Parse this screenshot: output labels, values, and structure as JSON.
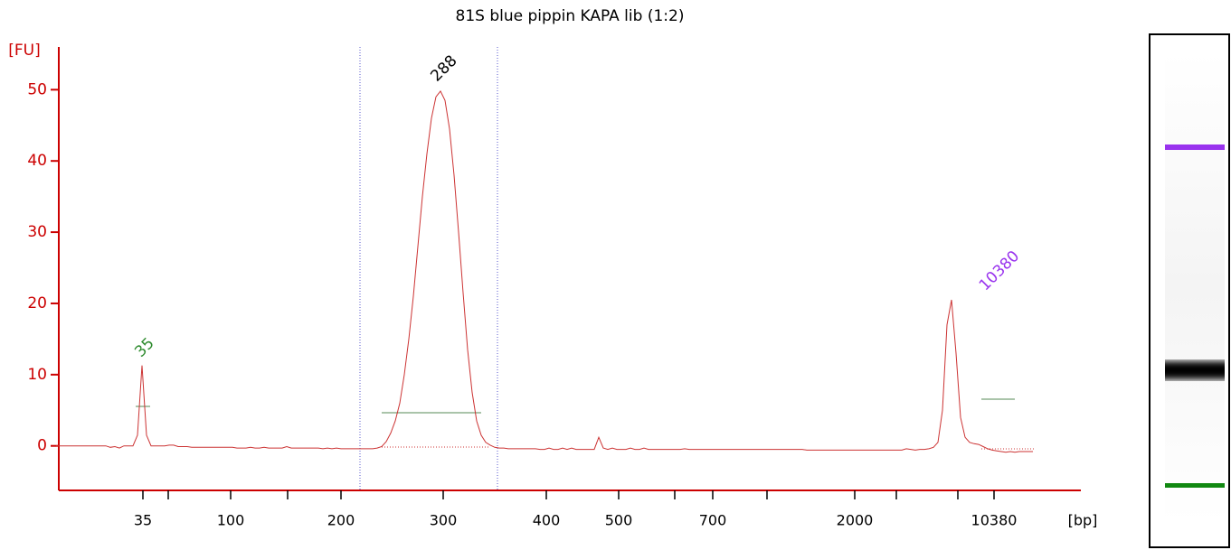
{
  "chart_data": {
    "type": "line",
    "title": "81S blue pippin KAPA lib (1:2)",
    "y_label": "[FU]",
    "x_label": "[bp]",
    "color": "#cc3333",
    "axis_color": "#cc0000",
    "ylim": [
      -6.25,
      56
    ],
    "yticks": [
      0,
      10,
      20,
      30,
      40,
      50
    ],
    "x_tick_labels": [
      "35",
      null,
      "100",
      null,
      "200",
      "300",
      "400",
      "500",
      null,
      "700",
      null,
      "2000",
      null,
      null,
      "10380"
    ],
    "annotations": [
      {
        "text": "35",
        "color": "#2e8b2e"
      },
      {
        "text": "288",
        "color": "#000000"
      },
      {
        "text": "10380",
        "color": "#9933ee"
      }
    ],
    "values": [
      0,
      0,
      0,
      0,
      0,
      0,
      0,
      0,
      0,
      0,
      0,
      0,
      -0.2,
      -0.1,
      -0.3,
      0,
      0,
      0,
      1.5,
      11.3,
      1.5,
      0,
      0,
      0,
      0,
      0.1,
      0.1,
      -0.1,
      -0.1,
      -0.1,
      -0.2,
      -0.2,
      -0.2,
      -0.2,
      -0.2,
      -0.2,
      -0.2,
      -0.2,
      -0.2,
      -0.2,
      -0.3,
      -0.3,
      -0.3,
      -0.2,
      -0.3,
      -0.3,
      -0.2,
      -0.3,
      -0.3,
      -0.3,
      -0.3,
      -0.1,
      -0.3,
      -0.3,
      -0.3,
      -0.3,
      -0.3,
      -0.3,
      -0.3,
      -0.4,
      -0.3,
      -0.4,
      -0.3,
      -0.4,
      -0.4,
      -0.4,
      -0.4,
      -0.4,
      -0.4,
      -0.4,
      -0.4,
      -0.3,
      -0.1,
      0.6,
      1.8,
      3.5,
      6,
      10,
      15,
      21,
      28,
      35,
      41,
      46,
      49,
      49.8,
      48.5,
      44.5,
      38,
      30,
      21.5,
      13.5,
      7.5,
      3.5,
      1.5,
      0.5,
      0.1,
      -0.2,
      -0.3,
      -0.3,
      -0.4,
      -0.4,
      -0.4,
      -0.4,
      -0.4,
      -0.4,
      -0.4,
      -0.5,
      -0.5,
      -0.3,
      -0.5,
      -0.5,
      -0.3,
      -0.5,
      -0.3,
      -0.5,
      -0.5,
      -0.5,
      -0.5,
      -0.5,
      1.2,
      -0.3,
      -0.5,
      -0.3,
      -0.5,
      -0.5,
      -0.5,
      -0.3,
      -0.5,
      -0.5,
      -0.3,
      -0.5,
      -0.5,
      -0.5,
      -0.5,
      -0.5,
      -0.5,
      -0.5,
      -0.5,
      -0.4,
      -0.5,
      -0.5,
      -0.5,
      -0.5,
      -0.5,
      -0.5,
      -0.5,
      -0.5,
      -0.5,
      -0.5,
      -0.5,
      -0.5,
      -0.5,
      -0.5,
      -0.5,
      -0.5,
      -0.5,
      -0.5,
      -0.5,
      -0.5,
      -0.5,
      -0.5,
      -0.5,
      -0.5,
      -0.5,
      -0.5,
      -0.6,
      -0.6,
      -0.6,
      -0.6,
      -0.6,
      -0.6,
      -0.6,
      -0.6,
      -0.6,
      -0.6,
      -0.6,
      -0.6,
      -0.6,
      -0.6,
      -0.6,
      -0.6,
      -0.6,
      -0.6,
      -0.6,
      -0.6,
      -0.6,
      -0.6,
      -0.4,
      -0.5,
      -0.6,
      -0.5,
      -0.5,
      -0.4,
      -0.2,
      0.5,
      5,
      17,
      20.5,
      13,
      4,
      1.2,
      0.5,
      0.3,
      0.2,
      -0.1,
      -0.4,
      -0.6,
      -0.7,
      -0.8,
      -0.9,
      -0.8,
      -0.9,
      -0.8,
      -0.8,
      -0.8,
      -0.8
    ]
  }
}
